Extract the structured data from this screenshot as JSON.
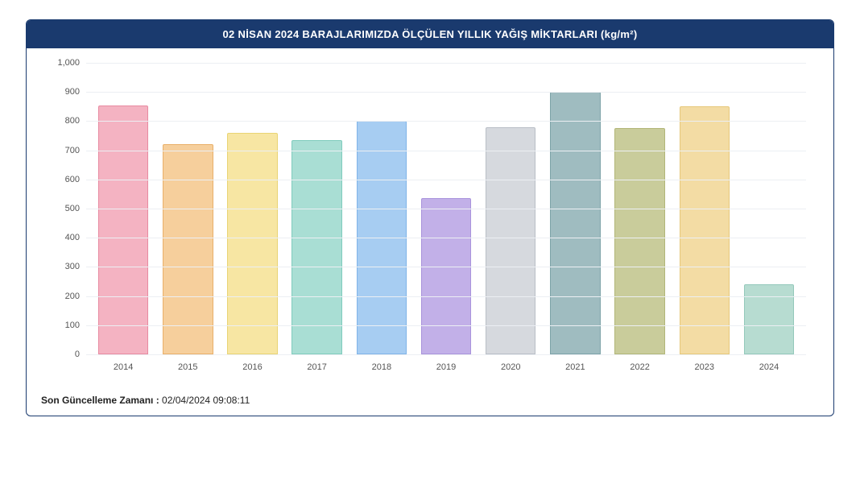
{
  "title": "02 NİSAN 2024 BARAJLARIMIZDA ÖLÇÜLEN YILLIK YAĞIŞ MİKTARLARI (kg/m²)",
  "chart": {
    "type": "bar",
    "ylim": [
      0,
      1000
    ],
    "ytick_step": 100,
    "ytick_labels": [
      "0",
      "100",
      "200",
      "300",
      "400",
      "500",
      "600",
      "700",
      "800",
      "900",
      "1,000"
    ],
    "grid_color": "#eceff3",
    "background_color": "#ffffff",
    "header_bg": "#1a3a6e",
    "header_text_color": "#ffffff",
    "xlabel_fontsize": 11,
    "ylabel_fontsize": 11,
    "categories": [
      "2014",
      "2015",
      "2016",
      "2017",
      "2018",
      "2019",
      "2020",
      "2021",
      "2022",
      "2023",
      "2024"
    ],
    "values": [
      855,
      720,
      760,
      735,
      800,
      535,
      780,
      900,
      775,
      850,
      240
    ],
    "bar_colors": [
      "#f4b3c2",
      "#f6cf9c",
      "#f7e6a3",
      "#a9ded4",
      "#a7cdf2",
      "#c2b0e8",
      "#d6d9de",
      "#9fbcc0",
      "#c9cc9b",
      "#f3dca4",
      "#b7dcd1"
    ],
    "bar_border_colors": [
      "#e88aa1",
      "#e9b06a",
      "#e9d474",
      "#7fccbd",
      "#7fb4e8",
      "#a993dc",
      "#b9bec6",
      "#7da3a8",
      "#b2b678",
      "#e6c87a",
      "#94c9bb"
    ],
    "bar_width": 0.78
  },
  "footer": {
    "label": "Son Güncelleme Zamanı :",
    "value": "02/04/2024 09:08:11"
  }
}
